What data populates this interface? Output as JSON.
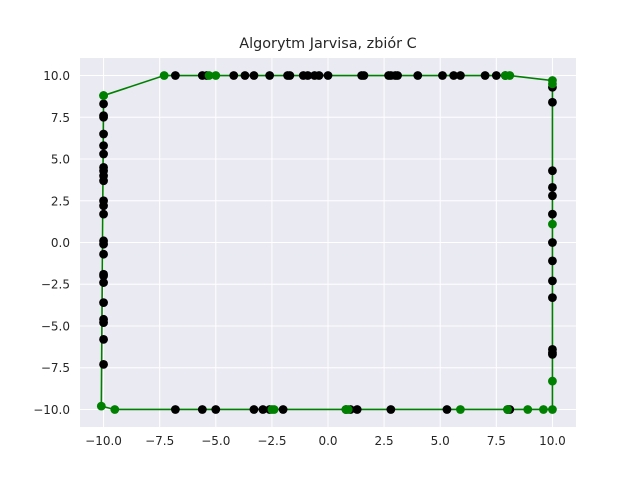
{
  "chart_data": {
    "type": "scatter",
    "title": "Algorytm Jarvisa, zbiór C",
    "xlabel": "",
    "ylabel": "",
    "xlim": [
      -11.05,
      11.05
    ],
    "ylim": [
      -11.05,
      11.05
    ],
    "xticks": [
      -10.0,
      -7.5,
      -5.0,
      -2.5,
      0.0,
      2.5,
      5.0,
      7.5,
      10.0
    ],
    "yticks": [
      -10.0,
      -7.5,
      -5.0,
      -2.5,
      0.0,
      2.5,
      5.0,
      7.5,
      10.0
    ],
    "xtick_labels": [
      "−10.0",
      "−7.5",
      "−5.0",
      "−2.5",
      "0.0",
      "2.5",
      "5.0",
      "7.5",
      "10.0"
    ],
    "ytick_labels": [
      "−10.0",
      "−7.5",
      "−5.0",
      "−2.5",
      "0.0",
      "2.5",
      "5.0",
      "7.5",
      "10.0"
    ],
    "grid": true,
    "legend": "none",
    "colors": {
      "background": "#eaeaf2",
      "grid": "#ffffff",
      "points": "#000000",
      "hull": "#008000",
      "text": "#262626"
    },
    "series": [
      {
        "role": "points",
        "points": [
          [
            -6.8,
            10
          ],
          [
            -5.6,
            10
          ],
          [
            -5.4,
            10
          ],
          [
            -4.2,
            10
          ],
          [
            -3.7,
            10
          ],
          [
            -3.3,
            10
          ],
          [
            -2.6,
            10
          ],
          [
            -1.8,
            10
          ],
          [
            -1.7,
            10
          ],
          [
            -1.1,
            10
          ],
          [
            -0.9,
            10
          ],
          [
            -0.6,
            10
          ],
          [
            -0.4,
            10
          ],
          [
            0.0,
            10
          ],
          [
            1.5,
            10
          ],
          [
            1.6,
            10
          ],
          [
            2.7,
            10
          ],
          [
            2.8,
            10
          ],
          [
            3.0,
            10
          ],
          [
            3.1,
            10
          ],
          [
            4.0,
            10
          ],
          [
            5.1,
            10
          ],
          [
            5.6,
            10
          ],
          [
            5.9,
            10
          ],
          [
            7.0,
            10
          ],
          [
            7.5,
            10
          ],
          [
            7.9,
            10
          ],
          [
            -10,
            8.3
          ],
          [
            -10,
            7.6
          ],
          [
            -10,
            7.5
          ],
          [
            -10,
            6.5
          ],
          [
            -10,
            5.8
          ],
          [
            -10,
            5.3
          ],
          [
            -10,
            4.5
          ],
          [
            -10,
            4.3
          ],
          [
            -10,
            4.0
          ],
          [
            -10,
            3.7
          ],
          [
            -10,
            2.5
          ],
          [
            -10,
            2.2
          ],
          [
            -10,
            1.7
          ],
          [
            -10,
            0.1
          ],
          [
            -10,
            -0.1
          ],
          [
            -10,
            -0.7
          ],
          [
            -10,
            -1.9
          ],
          [
            -10,
            -2.0
          ],
          [
            -10,
            -2.4
          ],
          [
            -10,
            -3.6
          ],
          [
            -10,
            -4.6
          ],
          [
            -10,
            -4.8
          ],
          [
            -10,
            -5.8
          ],
          [
            -10,
            -7.3
          ],
          [
            10,
            9.3
          ],
          [
            10,
            8.4
          ],
          [
            10,
            4.3
          ],
          [
            10,
            3.3
          ],
          [
            10,
            2.8
          ],
          [
            10,
            1.7
          ],
          [
            10,
            0.0
          ],
          [
            10,
            -1.1
          ],
          [
            10,
            -2.3
          ],
          [
            10,
            -3.3
          ],
          [
            10,
            -6.4
          ],
          [
            10,
            -6.6
          ],
          [
            10,
            -6.7
          ],
          [
            -6.8,
            -10
          ],
          [
            -5.6,
            -10
          ],
          [
            -5.0,
            -10
          ],
          [
            -3.3,
            -10
          ],
          [
            -2.9,
            -10
          ],
          [
            -2.6,
            -10
          ],
          [
            -2.0,
            -10
          ],
          [
            0.8,
            -10
          ],
          [
            1.0,
            -10
          ],
          [
            1.3,
            -10
          ],
          [
            2.8,
            -10
          ],
          [
            5.3,
            -10
          ],
          [
            8.0,
            -10
          ],
          [
            8.1,
            -10
          ]
        ]
      },
      {
        "role": "hull",
        "points": [
          [
            -10.0,
            8.8
          ],
          [
            -7.3,
            10.0
          ],
          [
            -5.3,
            10.0
          ],
          [
            -5.0,
            10.0
          ],
          [
            7.9,
            10.0
          ],
          [
            8.1,
            10.0
          ],
          [
            10.0,
            9.7
          ],
          [
            10.0,
            9.5
          ],
          [
            10.0,
            1.1
          ],
          [
            10.0,
            -8.3
          ],
          [
            10.0,
            -10.0
          ],
          [
            9.6,
            -10.0
          ],
          [
            8.9,
            -10.0
          ],
          [
            8.0,
            -10.0
          ],
          [
            5.9,
            -10.0
          ],
          [
            0.9,
            -10.0
          ],
          [
            0.8,
            -10.0
          ],
          [
            -2.4,
            -10.0
          ],
          [
            -2.5,
            -10.0
          ],
          [
            -9.5,
            -10.0
          ],
          [
            -10.1,
            -9.8
          ],
          [
            -10.0,
            8.8
          ]
        ]
      }
    ]
  }
}
